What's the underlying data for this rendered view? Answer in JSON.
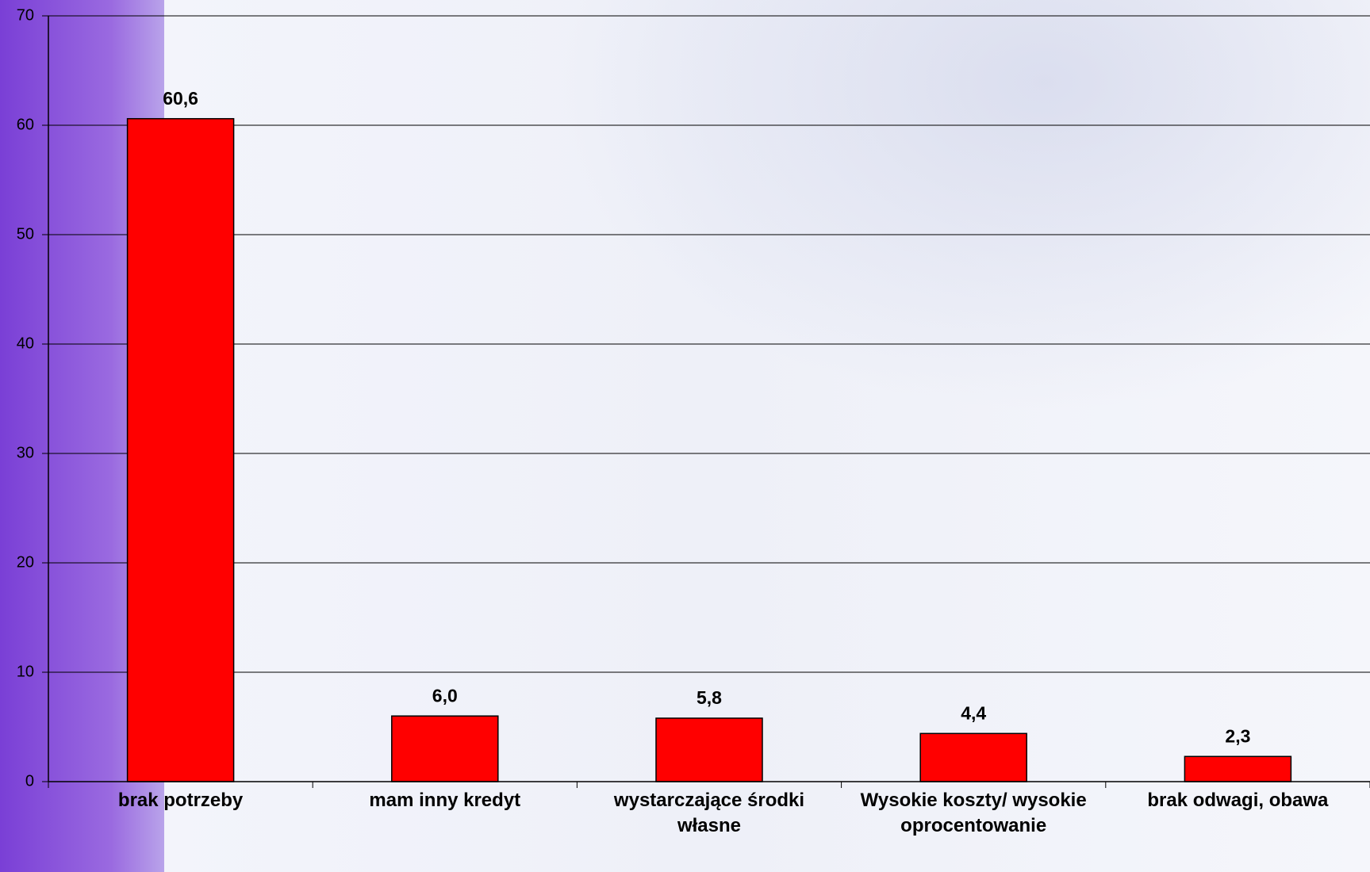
{
  "chart_data": {
    "type": "bar",
    "categories": [
      "brak potrzeby",
      "mam inny kredyt",
      "wystarczające środki własne",
      "Wysokie koszty/ wysokie oprocentowanie",
      "brak odwagi, obawa"
    ],
    "values": [
      60.6,
      6.0,
      5.8,
      4.4,
      2.3
    ],
    "value_labels": [
      "60,6",
      "6,0",
      "5,8",
      "4,4",
      "2,3"
    ],
    "color": "#ff0000",
    "ylim": [
      0,
      70
    ],
    "yticks": [
      0,
      10,
      20,
      30,
      40,
      50,
      60,
      70
    ],
    "grid": true
  }
}
